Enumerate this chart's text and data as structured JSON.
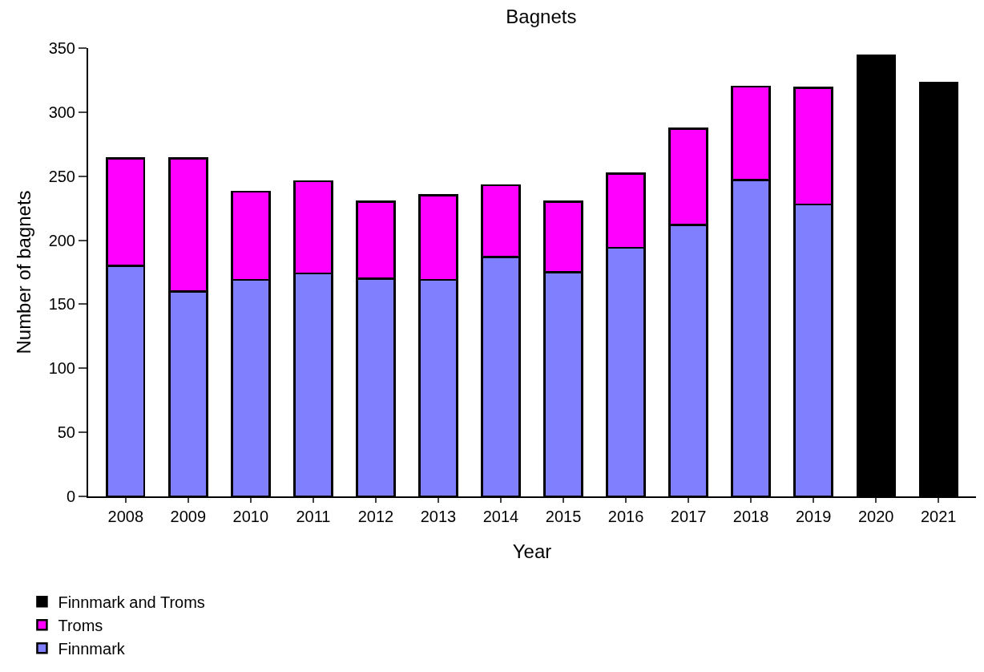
{
  "chart_data": {
    "type": "bar",
    "title": "Bagnets",
    "xlabel": "Year",
    "ylabel": "Number of bagnets",
    "categories": [
      "2008",
      "2009",
      "2010",
      "2011",
      "2012",
      "2013",
      "2014",
      "2015",
      "2016",
      "2017",
      "2018",
      "2019",
      "2020",
      "2021"
    ],
    "stacked": true,
    "ylim": [
      0,
      350
    ],
    "yticks": [
      0,
      50,
      100,
      150,
      200,
      250,
      300,
      350
    ],
    "grid": false,
    "legend": "bottom left",
    "series": [
      {
        "name": "Finnmark",
        "color": "#8080ff",
        "values": [
          180,
          160,
          169,
          174,
          170,
          169,
          187,
          175,
          194,
          212,
          247,
          228,
          null,
          null
        ]
      },
      {
        "name": "Troms",
        "color": "#ff00ff",
        "values": [
          84,
          104,
          69,
          72,
          60,
          66,
          56,
          55,
          58,
          75,
          73,
          91,
          null,
          null
        ]
      },
      {
        "name": "Finnmark and Troms",
        "color": "#000000",
        "values": [
          null,
          null,
          null,
          null,
          null,
          null,
          null,
          null,
          null,
          null,
          null,
          null,
          344,
          323
        ]
      }
    ]
  }
}
